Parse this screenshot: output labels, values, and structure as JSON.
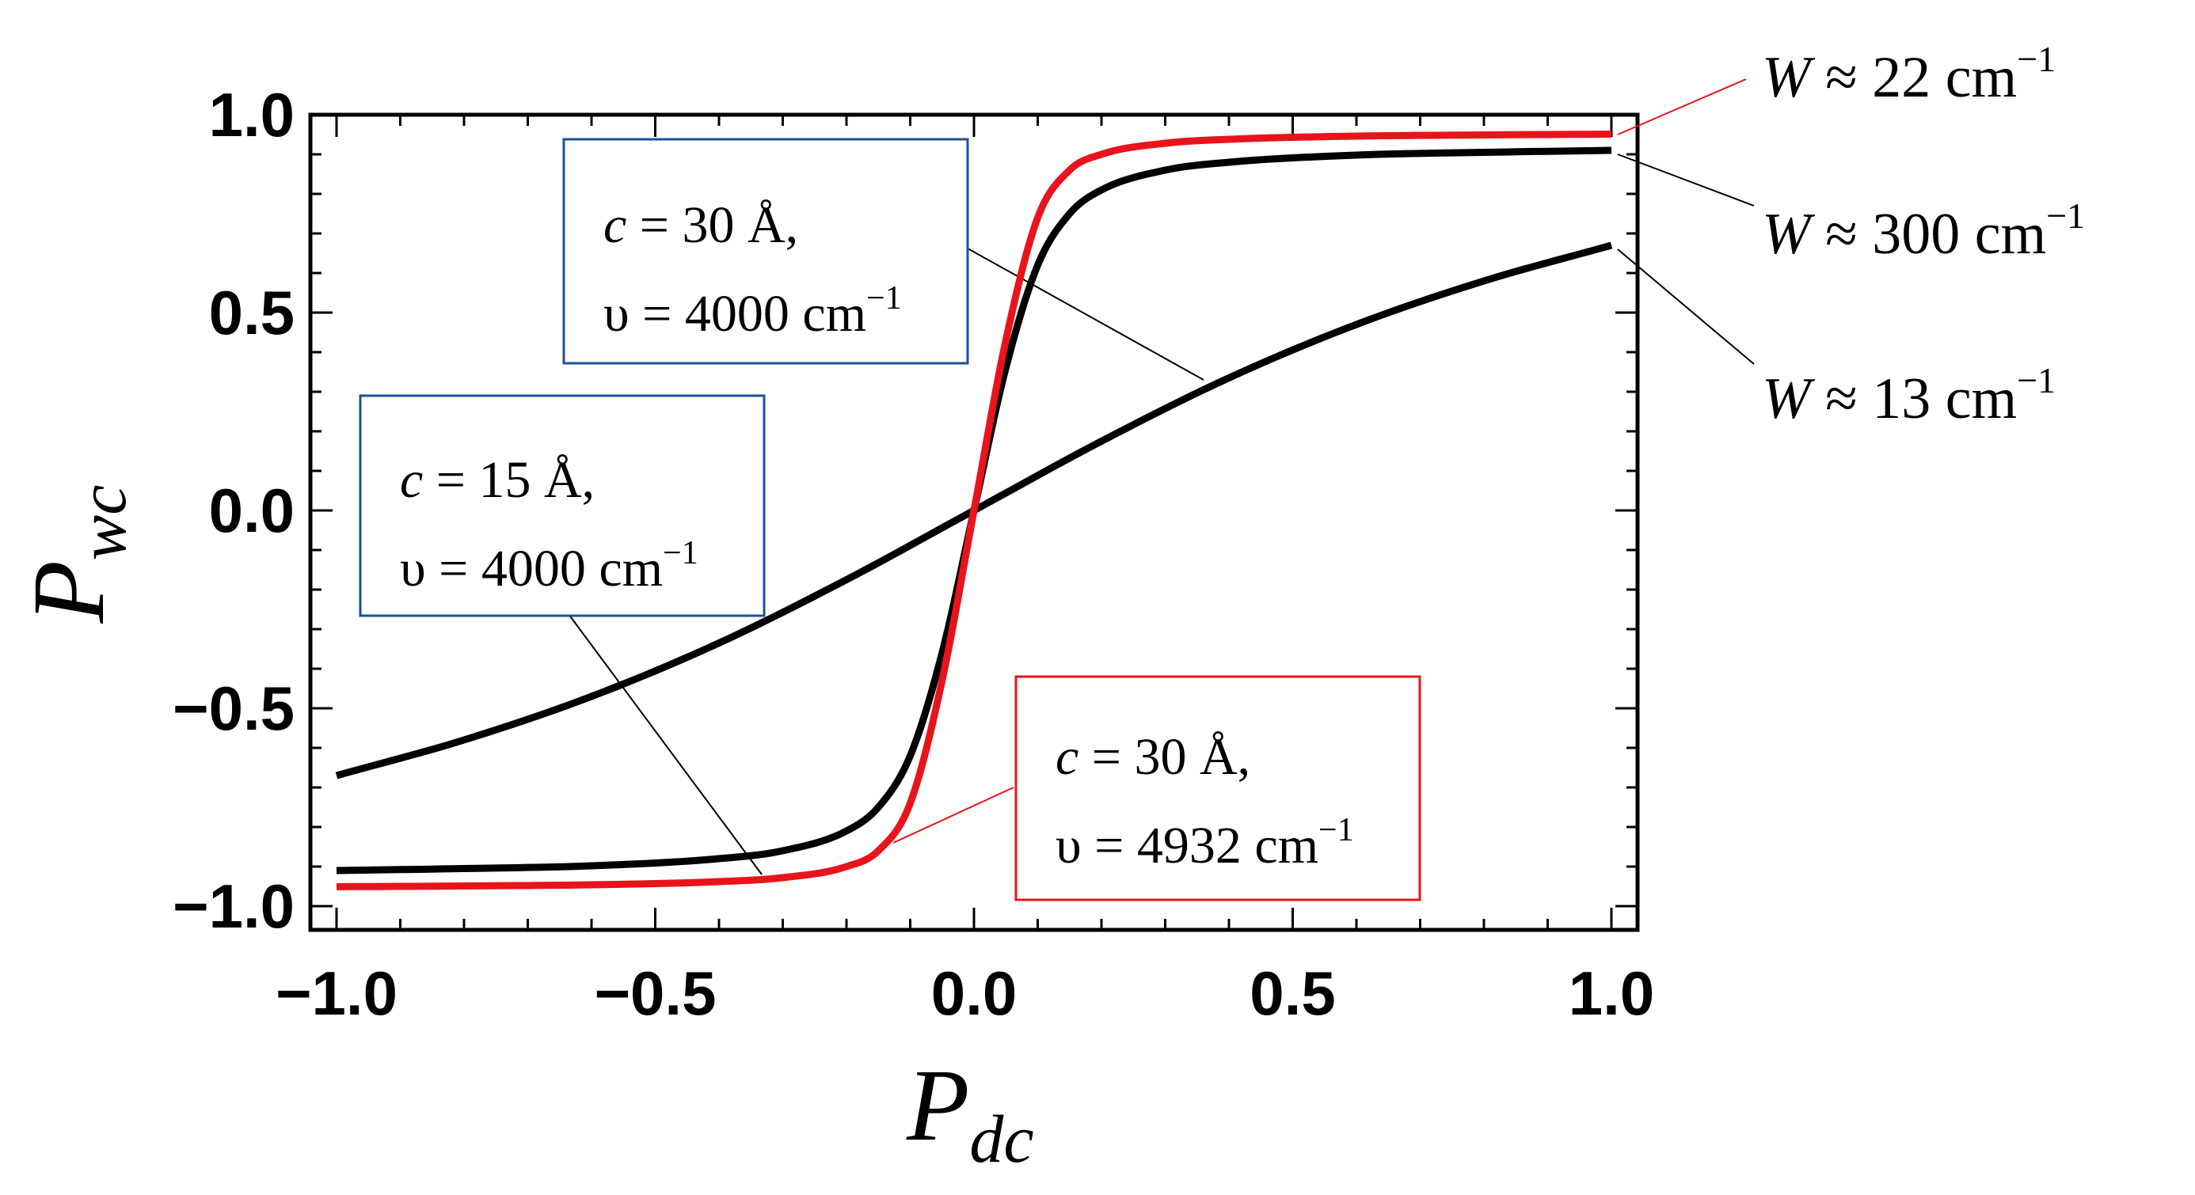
{
  "chart_data": {
    "type": "line",
    "title": "",
    "xlabel": {
      "main": "P",
      "sub": "dc"
    },
    "ylabel": {
      "main": "P",
      "sub": "wc"
    },
    "xlim": [
      -1.0,
      1.0
    ],
    "ylim": [
      -1.0,
      1.0
    ],
    "xticks": [
      -1.0,
      -0.5,
      0.0,
      0.5,
      1.0
    ],
    "yticks": [
      -1.0,
      -0.5,
      0.0,
      0.5,
      1.0
    ],
    "xtick_labels": [
      "−1.0",
      "−0.5",
      "0.0",
      "0.5",
      "1.0"
    ],
    "ytick_labels": [
      "−1.0",
      "−0.5",
      "0.0",
      "0.5",
      "1.0"
    ],
    "grid": false,
    "series": [
      {
        "name": "W ≈ 22 cm⁻¹",
        "color": "#e8141c",
        "x": [
          -1.0,
          -0.8,
          -0.6,
          -0.4,
          -0.3,
          -0.2,
          -0.15,
          -0.1,
          -0.05,
          0.0,
          0.05,
          0.1,
          0.15,
          0.2,
          0.3,
          0.4,
          0.6,
          0.8,
          1.0
        ],
        "y": [
          -0.951,
          -0.949,
          -0.946,
          -0.938,
          -0.928,
          -0.9,
          -0.86,
          -0.74,
          -0.43,
          0.0,
          0.43,
          0.74,
          0.86,
          0.9,
          0.928,
          0.938,
          0.946,
          0.949,
          0.951
        ]
      },
      {
        "name": "W ≈ 300 cm⁻¹",
        "color": "#000000",
        "x": [
          -1.0,
          -0.8,
          -0.6,
          -0.4,
          -0.3,
          -0.2,
          -0.15,
          -0.1,
          -0.05,
          0.0,
          0.05,
          0.1,
          0.15,
          0.2,
          0.3,
          0.4,
          0.6,
          0.8,
          1.0
        ],
        "y": [
          -0.91,
          -0.905,
          -0.898,
          -0.88,
          -0.86,
          -0.81,
          -0.75,
          -0.62,
          -0.36,
          0.0,
          0.36,
          0.62,
          0.75,
          0.81,
          0.86,
          0.88,
          0.898,
          0.905,
          0.91
        ]
      },
      {
        "name": "W ≈ 13 cm⁻¹",
        "color": "#000000",
        "x": [
          -1.0,
          -0.8,
          -0.6,
          -0.4,
          -0.2,
          0.0,
          0.2,
          0.4,
          0.6,
          0.8,
          1.0
        ],
        "y": [
          -0.67,
          -0.58,
          -0.47,
          -0.335,
          -0.175,
          0.0,
          0.175,
          0.335,
          0.47,
          0.58,
          0.67
        ]
      }
    ],
    "annotations": {
      "W_labels": [
        {
          "text": "W ≈ 22 cm",
          "sup": "−1"
        },
        {
          "text": "W ≈ 300 cm",
          "sup": "−1"
        },
        {
          "text": "W ≈ 13 cm",
          "sup": "−1"
        }
      ],
      "boxes": [
        {
          "line1": "c = 30 Å,",
          "line2": "υ = 4000 cm",
          "sup": "−1",
          "border": "#1f4e99"
        },
        {
          "line1": "c = 15 Å,",
          "line2": "υ = 4000 cm",
          "sup": "−1",
          "border": "#1f4e99"
        },
        {
          "line1": "c = 30 Å,",
          "line2": "υ = 4932 cm",
          "sup": "−1",
          "border": "#e8141c"
        }
      ]
    }
  }
}
